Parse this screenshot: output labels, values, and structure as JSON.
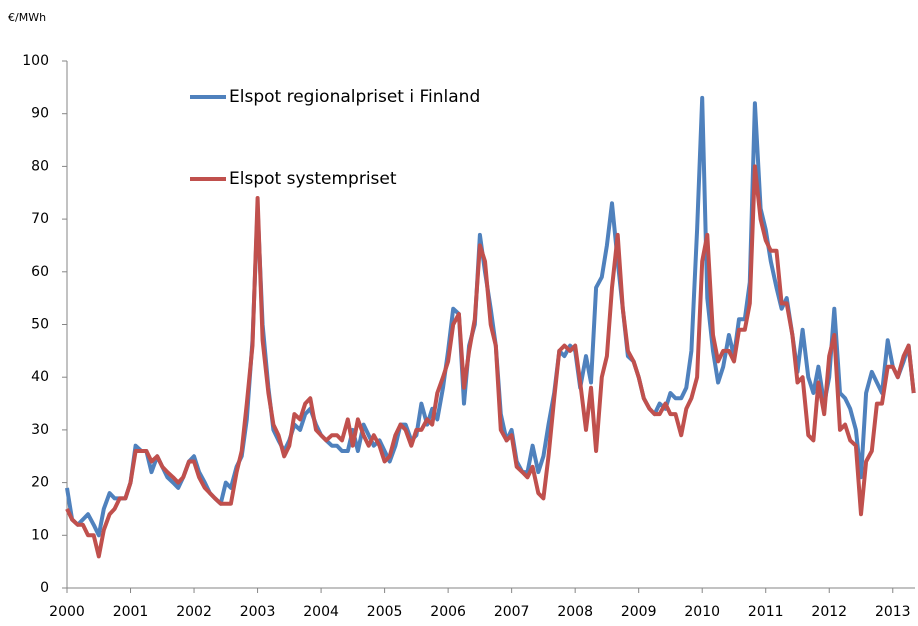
{
  "chart_data": {
    "type": "line",
    "y_unit_label": "€/MWh",
    "x": [
      2000,
      2000.08,
      2000.17,
      2000.25,
      2000.33,
      2000.42,
      2000.5,
      2000.58,
      2000.67,
      2000.75,
      2000.83,
      2000.92,
      2001,
      2001.08,
      2001.17,
      2001.25,
      2001.33,
      2001.42,
      2001.5,
      2001.58,
      2001.67,
      2001.75,
      2001.83,
      2001.92,
      2002,
      2002.08,
      2002.17,
      2002.25,
      2002.33,
      2002.42,
      2002.5,
      2002.58,
      2002.67,
      2002.75,
      2002.83,
      2002.92,
      2003,
      2003.08,
      2003.17,
      2003.25,
      2003.33,
      2003.42,
      2003.5,
      2003.58,
      2003.67,
      2003.75,
      2003.83,
      2003.92,
      2004,
      2004.08,
      2004.17,
      2004.25,
      2004.33,
      2004.42,
      2004.5,
      2004.58,
      2004.67,
      2004.75,
      2004.83,
      2004.92,
      2005,
      2005.08,
      2005.17,
      2005.25,
      2005.33,
      2005.42,
      2005.5,
      2005.58,
      2005.67,
      2005.75,
      2005.83,
      2005.92,
      2006,
      2006.08,
      2006.17,
      2006.25,
      2006.33,
      2006.42,
      2006.5,
      2006.58,
      2006.67,
      2006.75,
      2006.83,
      2006.92,
      2007,
      2007.08,
      2007.17,
      2007.25,
      2007.33,
      2007.42,
      2007.5,
      2007.58,
      2007.67,
      2007.75,
      2007.83,
      2007.92,
      2008,
      2008.08,
      2008.17,
      2008.25,
      2008.33,
      2008.42,
      2008.5,
      2008.58,
      2008.67,
      2008.75,
      2008.83,
      2008.92,
      2009,
      2009.08,
      2009.17,
      2009.25,
      2009.33,
      2009.42,
      2009.5,
      2009.58,
      2009.67,
      2009.75,
      2009.83,
      2009.92,
      2010,
      2010.08,
      2010.17,
      2010.25,
      2010.33,
      2010.42,
      2010.5,
      2010.58,
      2010.67,
      2010.75,
      2010.83,
      2010.92,
      2011,
      2011.08,
      2011.17,
      2011.25,
      2011.33,
      2011.42,
      2011.5,
      2011.58,
      2011.67,
      2011.75,
      2011.83,
      2011.92,
      2012,
      2012.08,
      2012.17,
      2012.25,
      2012.33,
      2012.42,
      2012.5,
      2012.58,
      2012.67,
      2012.75,
      2012.83,
      2012.92,
      2013,
      2013.08,
      2013.17,
      2013.25,
      2013.33
    ],
    "series": [
      {
        "name": "Elspot regionalpriset i Finland",
        "color": "#4f81bd",
        "values": [
          19,
          13,
          12,
          13,
          14,
          12,
          10,
          15,
          18,
          17,
          17,
          17,
          20,
          27,
          26,
          26,
          22,
          25,
          23,
          21,
          20,
          19,
          21,
          24,
          25,
          22,
          20,
          18,
          17,
          16,
          20,
          19,
          23,
          25,
          32,
          47,
          72,
          50,
          38,
          30,
          28,
          26,
          28,
          31,
          30,
          33,
          34,
          31,
          29,
          28,
          27,
          27,
          26,
          26,
          30,
          26,
          31,
          29,
          27,
          28,
          26,
          24,
          27,
          31,
          31,
          28,
          29,
          35,
          31,
          34,
          32,
          38,
          45,
          53,
          52,
          35,
          46,
          50,
          67,
          60,
          53,
          46,
          33,
          28,
          30,
          24,
          22,
          22,
          27,
          22,
          25,
          31,
          37,
          45,
          44,
          46,
          45,
          38,
          44,
          39,
          57,
          59,
          65,
          73,
          62,
          53,
          44,
          43,
          40,
          36,
          34,
          33,
          35,
          34,
          37,
          36,
          36,
          38,
          45,
          68,
          93,
          55,
          45,
          39,
          42,
          48,
          44,
          51,
          51,
          58,
          92,
          72,
          68,
          62,
          57,
          53,
          55,
          48,
          41,
          49,
          40,
          37,
          42,
          35,
          40,
          53,
          37,
          36,
          34,
          30,
          21,
          37,
          41,
          39,
          37,
          47,
          42,
          40,
          43,
          46,
          37
        ]
      },
      {
        "name": "Elspot systempriset",
        "color": "#c0504d",
        "values": [
          15,
          13,
          12,
          12,
          10,
          10,
          6,
          11,
          14,
          15,
          17,
          17,
          20,
          26,
          26,
          26,
          24,
          25,
          23,
          22,
          21,
          20,
          21,
          24,
          24,
          21,
          19,
          18,
          17,
          16,
          16,
          16,
          22,
          26,
          35,
          46,
          74,
          47,
          37,
          31,
          29,
          25,
          27,
          33,
          32,
          35,
          36,
          30,
          29,
          28,
          29,
          29,
          28,
          32,
          27,
          32,
          29,
          27,
          29,
          27,
          24,
          25,
          29,
          31,
          30,
          27,
          30,
          30,
          32,
          31,
          37,
          40,
          43,
          50,
          52,
          38,
          45,
          51,
          65,
          62,
          50,
          46,
          30,
          28,
          29,
          23,
          22,
          21,
          23,
          18,
          17,
          25,
          36,
          45,
          46,
          45,
          46,
          39,
          30,
          38,
          26,
          40,
          44,
          57,
          67,
          53,
          45,
          43,
          40,
          36,
          34,
          33,
          33,
          35,
          33,
          33,
          29,
          34,
          36,
          40,
          62,
          67,
          48,
          43,
          45,
          45,
          43,
          49,
          49,
          54,
          80,
          70,
          66,
          64,
          64,
          54,
          54,
          48,
          39,
          40,
          29,
          28,
          39,
          33,
          44,
          48,
          30,
          31,
          28,
          27,
          14,
          24,
          26,
          35,
          35,
          42,
          42,
          40,
          44,
          46,
          37
        ]
      }
    ],
    "xlim": [
      2000,
      2013.35
    ],
    "xticks": [
      2000,
      2001,
      2002,
      2003,
      2004,
      2005,
      2006,
      2007,
      2008,
      2009,
      2010,
      2011,
      2012,
      2013
    ],
    "ylim": [
      0,
      100
    ],
    "yticks": [
      0,
      10,
      20,
      30,
      40,
      50,
      60,
      70,
      80,
      90,
      100
    ],
    "grid": false
  }
}
